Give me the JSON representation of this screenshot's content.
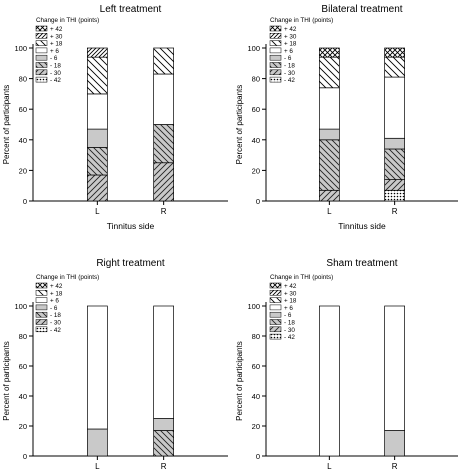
{
  "chart_data": [
    {
      "type": "bar",
      "title": "Left treatment",
      "xlabel": "Tinnitus side",
      "ylabel": "Percent of participants",
      "ylim": [
        0,
        100
      ],
      "yticks": [
        "0",
        "20",
        "40",
        "60",
        "80",
        "100"
      ],
      "categories": [
        "L",
        "R"
      ],
      "stacked": true,
      "legend": {
        "title": "Change in THI (points)",
        "position": "top-left",
        "entries": [
          "+ 42",
          "+ 30",
          "+ 18",
          "+ 6",
          "- 6",
          "- 18",
          "- 30",
          "- 42"
        ]
      },
      "series": [
        {
          "name": "- 30",
          "values": [
            17,
            25
          ]
        },
        {
          "name": "- 18",
          "values": [
            18,
            25
          ]
        },
        {
          "name": "- 6",
          "values": [
            12,
            0
          ]
        },
        {
          "name": "+ 6",
          "values": [
            23,
            33
          ]
        },
        {
          "name": "+ 18",
          "values": [
            24,
            17
          ]
        },
        {
          "name": "+ 30",
          "values": [
            6,
            0
          ]
        }
      ]
    },
    {
      "type": "bar",
      "title": "Bilateral treatment",
      "xlabel": "Tinnitus side",
      "ylabel": "Percent of participants",
      "ylim": [
        0,
        100
      ],
      "yticks": [
        "0",
        "20",
        "40",
        "60",
        "80",
        "100"
      ],
      "categories": [
        "L",
        "R"
      ],
      "stacked": true,
      "legend": {
        "title": "Change in THI (points)",
        "position": "top-left",
        "entries": [
          "+ 42",
          "+ 30",
          "+ 18",
          "+ 6",
          "- 6",
          "- 18",
          "- 30",
          "- 42"
        ]
      },
      "series": [
        {
          "name": "- 42",
          "values": [
            0,
            7
          ]
        },
        {
          "name": "- 30",
          "values": [
            7,
            7
          ]
        },
        {
          "name": "- 18",
          "values": [
            33,
            20
          ]
        },
        {
          "name": "- 6",
          "values": [
            7,
            7
          ]
        },
        {
          "name": "+ 6",
          "values": [
            27,
            40
          ]
        },
        {
          "name": "+ 18",
          "values": [
            20,
            13
          ]
        },
        {
          "name": "+ 30",
          "values": [
            0,
            0
          ]
        },
        {
          "name": "+ 42",
          "values": [
            6,
            6
          ]
        }
      ]
    },
    {
      "type": "bar",
      "title": "Right treatment",
      "xlabel": "",
      "ylabel": "Percent of participants",
      "ylim": [
        0,
        100
      ],
      "yticks": [
        "0",
        "20",
        "40",
        "60",
        "80",
        "100"
      ],
      "categories": [
        "L",
        "R"
      ],
      "stacked": true,
      "legend": {
        "title": "Change in THI (points)",
        "position": "top-left",
        "entries": [
          "+ 42",
          "+ 18",
          "+ 6",
          "- 6",
          "- 18",
          "- 30",
          "- 42"
        ]
      },
      "series": [
        {
          "name": "- 18",
          "values": [
            0,
            17
          ]
        },
        {
          "name": "- 6",
          "values": [
            18,
            8
          ]
        },
        {
          "name": "+ 6",
          "values": [
            82,
            75
          ]
        }
      ]
    },
    {
      "type": "bar",
      "title": "Sham treatment",
      "xlabel": "",
      "ylabel": "Percent of participants",
      "ylim": [
        0,
        100
      ],
      "yticks": [
        "0",
        "20",
        "40",
        "60",
        "80",
        "100"
      ],
      "categories": [
        "L",
        "R"
      ],
      "stacked": true,
      "legend": {
        "title": "Change in THI (points)",
        "position": "top-left",
        "entries": [
          "+ 42",
          "+ 30",
          "+ 18",
          "+ 6",
          "- 6",
          "- 18",
          "- 30",
          "- 42"
        ]
      },
      "series": [
        {
          "name": "- 6",
          "values": [
            0,
            17
          ]
        },
        {
          "name": "+ 6",
          "values": [
            100,
            83
          ]
        }
      ]
    }
  ],
  "pattern_map": {
    "+ 42": "crosshatch",
    "+ 30": "diag-fwd-dense",
    "+ 18": "diag-back-sparse",
    "+ 6": "white",
    "- 6": "gray",
    "- 18": "diag-back-gray",
    "- 30": "diag-fwd-gray",
    "- 42": "dots"
  }
}
